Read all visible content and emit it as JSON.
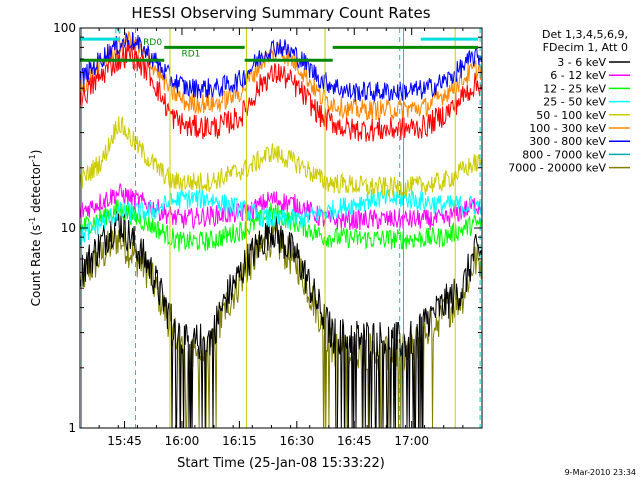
{
  "chart_data": {
    "type": "line",
    "title": "HESSI Observing Summary Count Rates",
    "xlabel": "Start Time (25-Jan-08 15:33:22)",
    "ylabel_main": "Count Rate (s",
    "ylabel_sup1": "-1",
    "ylabel_mid": " detector",
    "ylabel_sup2": "-1",
    "ylabel_end": ")",
    "yscale": "log",
    "ylim": [
      1,
      100
    ],
    "xlim_minutes": [
      0,
      105
    ],
    "yticks": [
      {
        "value": 1,
        "label": "1"
      },
      {
        "value": 10,
        "label": "10"
      },
      {
        "value": 100,
        "label": "100"
      }
    ],
    "xticks": [
      {
        "minute": 11.6333,
        "label": "15:45"
      },
      {
        "minute": 26.6333,
        "label": "16:00"
      },
      {
        "minute": 41.6333,
        "label": "16:15"
      },
      {
        "minute": 56.6333,
        "label": "16:30"
      },
      {
        "minute": 71.6333,
        "label": "16:45"
      },
      {
        "minute": 86.6333,
        "label": "17:00"
      }
    ],
    "legend_header": [
      "Det 1,3,4,5,6,9,",
      "FDecim 1, Att 0"
    ],
    "legend_position": "right",
    "series": [
      {
        "name": "3 - 6 keV",
        "color": "#000000",
        "anchors": [
          [
            0,
            6.0
          ],
          [
            10,
            11
          ],
          [
            18,
            6.5
          ],
          [
            24,
            3.4
          ],
          [
            28,
            2.6
          ],
          [
            34,
            2.8
          ],
          [
            38,
            4.4
          ],
          [
            44,
            7.0
          ],
          [
            50,
            10.0
          ],
          [
            57,
            7.0
          ],
          [
            62,
            4.2
          ],
          [
            66,
            2.9
          ],
          [
            78,
            2.8
          ],
          [
            86,
            2.7
          ],
          [
            90,
            3.4
          ],
          [
            100,
            5.0
          ],
          [
            103,
            7.5
          ]
        ]
      },
      {
        "name": "6 - 12 keV",
        "color": "#ff00ff",
        "anchors": [
          [
            0,
            12
          ],
          [
            10,
            15
          ],
          [
            18,
            13
          ],
          [
            26,
            11
          ],
          [
            34,
            11.5
          ],
          [
            44,
            12
          ],
          [
            50,
            14
          ],
          [
            57,
            13
          ],
          [
            64,
            11
          ],
          [
            76,
            11
          ],
          [
            86,
            11
          ],
          [
            95,
            11
          ],
          [
            103,
            13
          ]
        ]
      },
      {
        "name": "12 - 25 keV",
        "color": "#00ff00",
        "anchors": [
          [
            0,
            10
          ],
          [
            10,
            12.5
          ],
          [
            18,
            10.5
          ],
          [
            26,
            8.5
          ],
          [
            34,
            8.6
          ],
          [
            44,
            10
          ],
          [
            50,
            12
          ],
          [
            57,
            10.5
          ],
          [
            64,
            9.0
          ],
          [
            76,
            8.8
          ],
          [
            86,
            8.8
          ],
          [
            95,
            9.0
          ],
          [
            103,
            10.5
          ]
        ]
      },
      {
        "name": "25 - 50 keV",
        "color": "#00ffff",
        "anchors": [
          [
            0,
            9.0
          ],
          [
            10,
            12
          ],
          [
            18,
            12
          ],
          [
            26,
            14
          ],
          [
            34,
            14
          ],
          [
            44,
            12
          ],
          [
            50,
            11
          ],
          [
            57,
            11
          ],
          [
            64,
            12
          ],
          [
            76,
            14
          ],
          [
            86,
            14
          ],
          [
            95,
            13
          ],
          [
            103,
            13
          ]
        ]
      },
      {
        "name": "50 - 100 keV",
        "color": "#cccc00",
        "anchors": [
          [
            0,
            17
          ],
          [
            6,
            22
          ],
          [
            10,
            34
          ],
          [
            14,
            27
          ],
          [
            18,
            22
          ],
          [
            24,
            17
          ],
          [
            34,
            17
          ],
          [
            44,
            20
          ],
          [
            50,
            24
          ],
          [
            57,
            21
          ],
          [
            64,
            17
          ],
          [
            76,
            16
          ],
          [
            86,
            16
          ],
          [
            95,
            17
          ],
          [
            103,
            21
          ]
        ]
      },
      {
        "name": "100 - 300 keV",
        "color": "#ff8800",
        "anchors": [
          [
            0,
            50
          ],
          [
            8,
            75
          ],
          [
            13,
            88
          ],
          [
            18,
            70
          ],
          [
            24,
            48
          ],
          [
            28,
            42
          ],
          [
            36,
            42
          ],
          [
            42,
            48
          ],
          [
            48,
            70
          ],
          [
            52,
            78
          ],
          [
            57,
            65
          ],
          [
            63,
            45
          ],
          [
            70,
            39
          ],
          [
            80,
            39
          ],
          [
            90,
            40
          ],
          [
            96,
            48
          ],
          [
            103,
            62
          ]
        ]
      },
      {
        "name": "300 - 800 keV",
        "color": "#0000ff",
        "anchors": [
          [
            0,
            55
          ],
          [
            8,
            78
          ],
          [
            13,
            88
          ],
          [
            18,
            74
          ],
          [
            24,
            55
          ],
          [
            28,
            50
          ],
          [
            36,
            50
          ],
          [
            42,
            55
          ],
          [
            48,
            75
          ],
          [
            52,
            82
          ],
          [
            57,
            72
          ],
          [
            63,
            55
          ],
          [
            70,
            48
          ],
          [
            80,
            48
          ],
          [
            90,
            49
          ],
          [
            96,
            55
          ],
          [
            103,
            72
          ]
        ]
      },
      {
        "name": "800 - 7000 keV",
        "color": "#00aaaa",
        "anchors": [
          [
            0,
            44
          ],
          [
            8,
            70
          ],
          [
            13,
            82
          ],
          [
            18,
            64
          ],
          [
            24,
            41
          ],
          [
            28,
            36
          ],
          [
            36,
            36
          ],
          [
            42,
            40
          ],
          [
            48,
            58
          ],
          [
            52,
            64
          ],
          [
            57,
            54
          ],
          [
            63,
            40
          ],
          [
            70,
            35
          ],
          [
            80,
            35
          ],
          [
            90,
            36
          ],
          [
            96,
            40
          ],
          [
            103,
            52
          ]
        ]
      },
      {
        "name": "7000 - 20000 keV",
        "color": "#808000",
        "anchors": [
          [
            0,
            5.5
          ],
          [
            10,
            9
          ],
          [
            18,
            6
          ],
          [
            24,
            3.2
          ],
          [
            28,
            2.2
          ],
          [
            34,
            2.4
          ],
          [
            38,
            4.0
          ],
          [
            44,
            6.5
          ],
          [
            50,
            9.0
          ],
          [
            57,
            6.5
          ],
          [
            62,
            3.9
          ],
          [
            66,
            2.5
          ],
          [
            78,
            2.4
          ],
          [
            86,
            2.4
          ],
          [
            90,
            3.0
          ],
          [
            100,
            4.6
          ],
          [
            103,
            6.8
          ]
        ]
      }
    ],
    "red_series": {
      "color": "#ff0000",
      "anchors": [
        [
          0,
          44
        ],
        [
          8,
          65
        ],
        [
          13,
          75
        ],
        [
          18,
          60
        ],
        [
          24,
          36
        ],
        [
          28,
          32
        ],
        [
          36,
          32
        ],
        [
          42,
          36
        ],
        [
          48,
          55
        ],
        [
          52,
          60
        ],
        [
          57,
          50
        ],
        [
          63,
          36
        ],
        [
          70,
          31
        ],
        [
          80,
          31
        ],
        [
          90,
          32
        ],
        [
          96,
          38
        ],
        [
          103,
          52
        ]
      ]
    },
    "annotations": [
      {
        "text": "N",
        "color": "#00cccc",
        "minute": 9.0,
        "value": 94
      },
      {
        "text": "RD0",
        "color": "#008800",
        "minute": 16.5,
        "value": 82
      },
      {
        "text": "RD1",
        "color": "#008800",
        "minute": 26.5,
        "value": 72
      }
    ],
    "state_bars": [
      {
        "color": "#00dddd",
        "value": 88,
        "segments": [
          [
            0,
            10.5
          ],
          [
            89,
            104
          ]
        ]
      },
      {
        "color": "#008800",
        "value": 80,
        "segments": [
          [
            22,
            43
          ],
          [
            66,
            104
          ]
        ]
      },
      {
        "color": "#008800",
        "value": 69,
        "segments": [
          [
            0,
            22
          ],
          [
            43,
            66
          ]
        ]
      }
    ],
    "vlines_solid": [
      {
        "color": "#00cccc",
        "minute": 0.4
      },
      {
        "color": "#00cccc",
        "minute": 84.5
      },
      {
        "color": "#cccc00",
        "minute": 23.5
      },
      {
        "color": "#cccc00",
        "minute": 43.5
      },
      {
        "color": "#cccc00",
        "minute": 64.0
      },
      {
        "color": "#cccc00",
        "minute": 98.0
      }
    ],
    "vlines_dashed": [
      {
        "color": "#00cccc",
        "minute": 14.5
      },
      {
        "color": "#00cccc",
        "minute": 83.5
      },
      {
        "color": "#00cccc",
        "minute": 104.5
      }
    ],
    "footer_date": "9-Mar-2010 23:34"
  }
}
